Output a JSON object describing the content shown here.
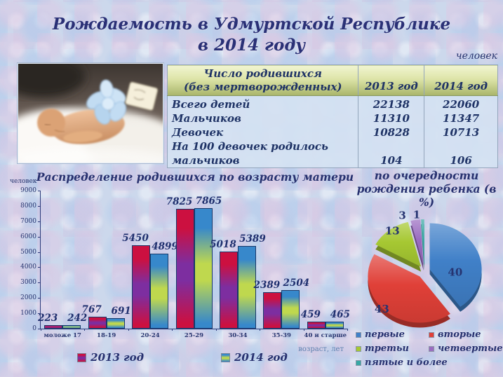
{
  "slide": {
    "title_line1": "Рождаемость в Удмуртской Республике",
    "title_line2": "в 2014 году",
    "units_note": "человек"
  },
  "photo": {
    "description": "sleeping newborn baby with light blue bow and gift tag"
  },
  "table": {
    "header": {
      "col1_line1": "Число родившихся",
      "col1_line2": "(без мертворожденных)",
      "col2": "2013 год",
      "col3": "2014 год"
    },
    "rows": [
      {
        "label": "Всего детей",
        "y2013": "22138",
        "y2014": "22060"
      },
      {
        "label": "Мальчиков",
        "y2013": "11310",
        "y2014": "11347"
      },
      {
        "label": "Девочек",
        "y2013": "10828",
        "y2014": "10713"
      },
      {
        "label": "На 100 девочек родилось мальчиков",
        "y2013": "104",
        "y2014": "106"
      }
    ]
  },
  "chart_data": [
    {
      "type": "bar",
      "title": "Распределение родившихся по возрасту матери",
      "ylabel": "человек",
      "xlabel": "возраст, лет",
      "categories": [
        "моложе 17",
        "18-19",
        "20-24",
        "25-29",
        "30-34",
        "35-39",
        "40 и старше"
      ],
      "series": [
        {
          "name": "2013 год",
          "values": [
            223,
            767,
            5450,
            7825,
            5018,
            2389,
            459
          ],
          "color_edge": "#cc1040",
          "color_mid": "#7d2ea0"
        },
        {
          "name": "2014 год",
          "values": [
            242,
            691,
            4899,
            7865,
            5389,
            2504,
            465
          ],
          "color_edge": "#3788cb",
          "color_mid": "#bfd84e"
        }
      ],
      "ylim": [
        0,
        9000
      ],
      "ytick_step": 1000,
      "grid": false,
      "legend_position": "bottom"
    },
    {
      "type": "pie",
      "title": "по очередности рождения ребенка (в %)",
      "labels": [
        "первые",
        "вторые",
        "третьи",
        "четвертые",
        "пятые и более"
      ],
      "values": [
        40,
        43,
        13,
        3,
        1
      ],
      "colors": [
        "#4080c8",
        "#e04038",
        "#a6c832",
        "#9a6cc0",
        "#38a8a4"
      ],
      "legend_position": "bottom"
    }
  ]
}
